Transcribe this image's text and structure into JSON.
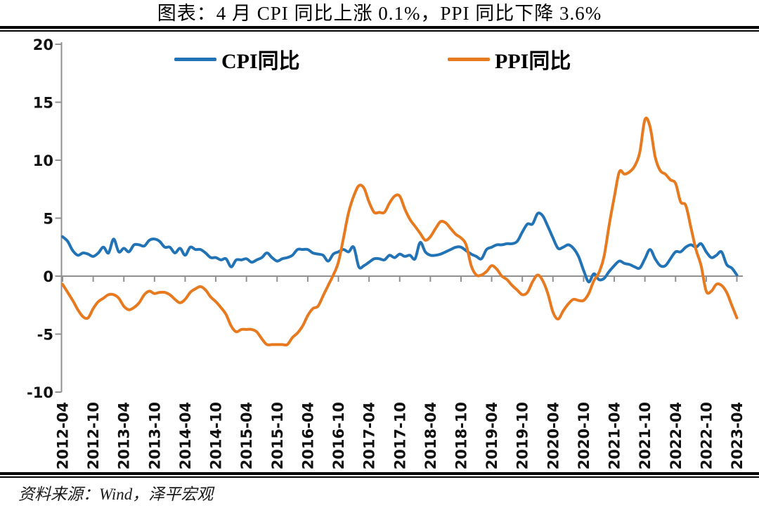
{
  "title": "图表：4 月 CPI 同比上涨 0.1%，PPI 同比下降 3.6%",
  "source": "资料来源：Wind，泽平宏观",
  "legend": {
    "cpi_label": "CPI同比",
    "ppi_label": "PPI同比"
  },
  "colors": {
    "cpi": "#2173B6",
    "ppi": "#E7791F",
    "axis": "#909090",
    "label_text": "#111111",
    "rule": "#000000"
  },
  "chart_data": {
    "type": "line",
    "title": "图表：4 月 CPI 同比上涨 0.1%，PPI 同比下降 3.6%",
    "xlabel": "",
    "ylabel": "",
    "ylim": [
      -10,
      20
    ],
    "y_ticks": [
      20,
      15,
      10,
      5,
      0,
      -5,
      -10
    ],
    "grid": false,
    "legend_position": "top",
    "x_unit": "month",
    "x_range": [
      "2012-04",
      "2023-04"
    ],
    "x_tick_labels": [
      "2012-04",
      "2012-10",
      "2013-04",
      "2013-10",
      "2014-04",
      "2014-10",
      "2015-04",
      "2015-10",
      "2016-04",
      "2016-10",
      "2017-04",
      "2017-10",
      "2018-04",
      "2018-10",
      "2019-04",
      "2019-10",
      "2020-04",
      "2020-10",
      "2021-04",
      "2021-10",
      "2022-04",
      "2022-10",
      "2023-04"
    ],
    "x_tick_every_n_months": 6,
    "series": [
      {
        "name": "CPI同比",
        "color": "#2173B6",
        "values": [
          3.4,
          3.0,
          2.2,
          1.8,
          2.0,
          1.9,
          1.7,
          2.0,
          2.5,
          2.0,
          3.2,
          2.1,
          2.4,
          2.1,
          2.7,
          2.7,
          2.6,
          3.1,
          3.2,
          3.0,
          2.5,
          2.5,
          2.0,
          2.4,
          1.8,
          2.5,
          2.3,
          2.3,
          2.0,
          1.6,
          1.6,
          1.4,
          1.5,
          0.8,
          1.4,
          1.4,
          1.5,
          1.2,
          1.4,
          1.6,
          2.0,
          1.6,
          1.3,
          1.5,
          1.6,
          1.8,
          2.3,
          2.3,
          2.3,
          2.0,
          1.9,
          1.8,
          1.3,
          1.9,
          2.1,
          2.3,
          2.1,
          2.5,
          0.8,
          0.9,
          1.2,
          1.5,
          1.5,
          1.4,
          1.8,
          1.6,
          1.9,
          1.7,
          1.8,
          1.5,
          2.9,
          2.1,
          1.8,
          1.8,
          1.9,
          2.1,
          2.3,
          2.5,
          2.5,
          2.2,
          1.9,
          1.7,
          1.5,
          2.3,
          2.5,
          2.7,
          2.7,
          2.8,
          2.8,
          3.0,
          3.8,
          4.5,
          4.5,
          5.4,
          5.2,
          4.3,
          3.3,
          2.4,
          2.5,
          2.7,
          2.4,
          1.7,
          0.5,
          -0.5,
          0.2,
          -0.3,
          -0.2,
          0.4,
          0.9,
          1.3,
          1.1,
          1.0,
          0.8,
          0.7,
          1.5,
          2.3,
          1.5,
          0.9,
          0.9,
          1.5,
          2.1,
          2.1,
          2.5,
          2.7,
          2.5,
          2.8,
          2.1,
          1.6,
          1.8,
          2.1,
          1.0,
          0.7,
          0.1
        ]
      },
      {
        "name": "PPI同比",
        "color": "#E7791F",
        "values": [
          -0.7,
          -1.4,
          -2.1,
          -2.9,
          -3.5,
          -3.6,
          -2.8,
          -2.2,
          -1.9,
          -1.6,
          -1.6,
          -1.9,
          -2.6,
          -2.9,
          -2.7,
          -2.3,
          -1.6,
          -1.3,
          -1.5,
          -1.4,
          -1.4,
          -1.6,
          -2.0,
          -2.3,
          -2.0,
          -1.4,
          -1.1,
          -0.9,
          -1.2,
          -1.8,
          -2.2,
          -2.7,
          -3.3,
          -4.3,
          -4.8,
          -4.6,
          -4.6,
          -4.6,
          -4.8,
          -5.4,
          -5.9,
          -5.9,
          -5.9,
          -5.9,
          -5.9,
          -5.3,
          -4.9,
          -4.3,
          -3.4,
          -2.8,
          -2.6,
          -1.7,
          -0.8,
          0.1,
          1.2,
          3.3,
          5.5,
          6.9,
          7.8,
          7.6,
          6.4,
          5.5,
          5.5,
          5.5,
          6.3,
          6.9,
          6.9,
          5.8,
          4.9,
          4.3,
          3.7,
          3.1,
          3.4,
          4.1,
          4.7,
          4.6,
          4.1,
          3.6,
          3.3,
          2.7,
          0.9,
          0.1,
          0.1,
          0.4,
          0.9,
          0.6,
          0.0,
          -0.3,
          -0.8,
          -1.2,
          -1.6,
          -1.4,
          -0.5,
          0.1,
          -0.4,
          -1.5,
          -3.1,
          -3.7,
          -3.0,
          -2.4,
          -2.0,
          -2.1,
          -2.1,
          -1.5,
          -0.4,
          0.3,
          1.7,
          4.4,
          6.8,
          9.0,
          8.8,
          9.0,
          9.5,
          10.7,
          13.5,
          12.9,
          10.3,
          9.1,
          8.8,
          8.3,
          8.0,
          6.4,
          6.1,
          4.2,
          2.3,
          0.9,
          -1.3,
          -1.3,
          -0.7,
          -0.8,
          -1.4,
          -2.5,
          -3.6
        ]
      }
    ]
  }
}
